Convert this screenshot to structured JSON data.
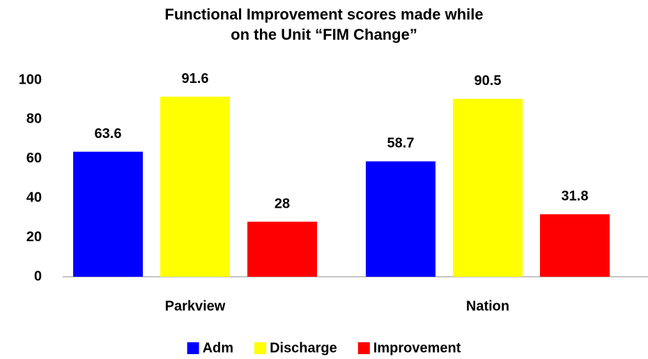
{
  "chart_data": {
    "type": "bar",
    "title": [
      "Functional Improvement scores made while",
      "on the Unit “FIM Change”"
    ],
    "categories": [
      "Parkview",
      "Nation"
    ],
    "series": [
      {
        "name": "Adm",
        "color": "#0000ff",
        "values": [
          63.6,
          58.7
        ]
      },
      {
        "name": "Discharge",
        "color": "#ffff00",
        "values": [
          91.6,
          90.5
        ]
      },
      {
        "name": "Improvement",
        "color": "#ff0000",
        "values": [
          28,
          31.8
        ]
      }
    ],
    "ylim": [
      0,
      100
    ],
    "yticks": [
      0,
      20,
      40,
      60,
      80,
      100
    ],
    "grid": false,
    "legend": "bottom"
  }
}
